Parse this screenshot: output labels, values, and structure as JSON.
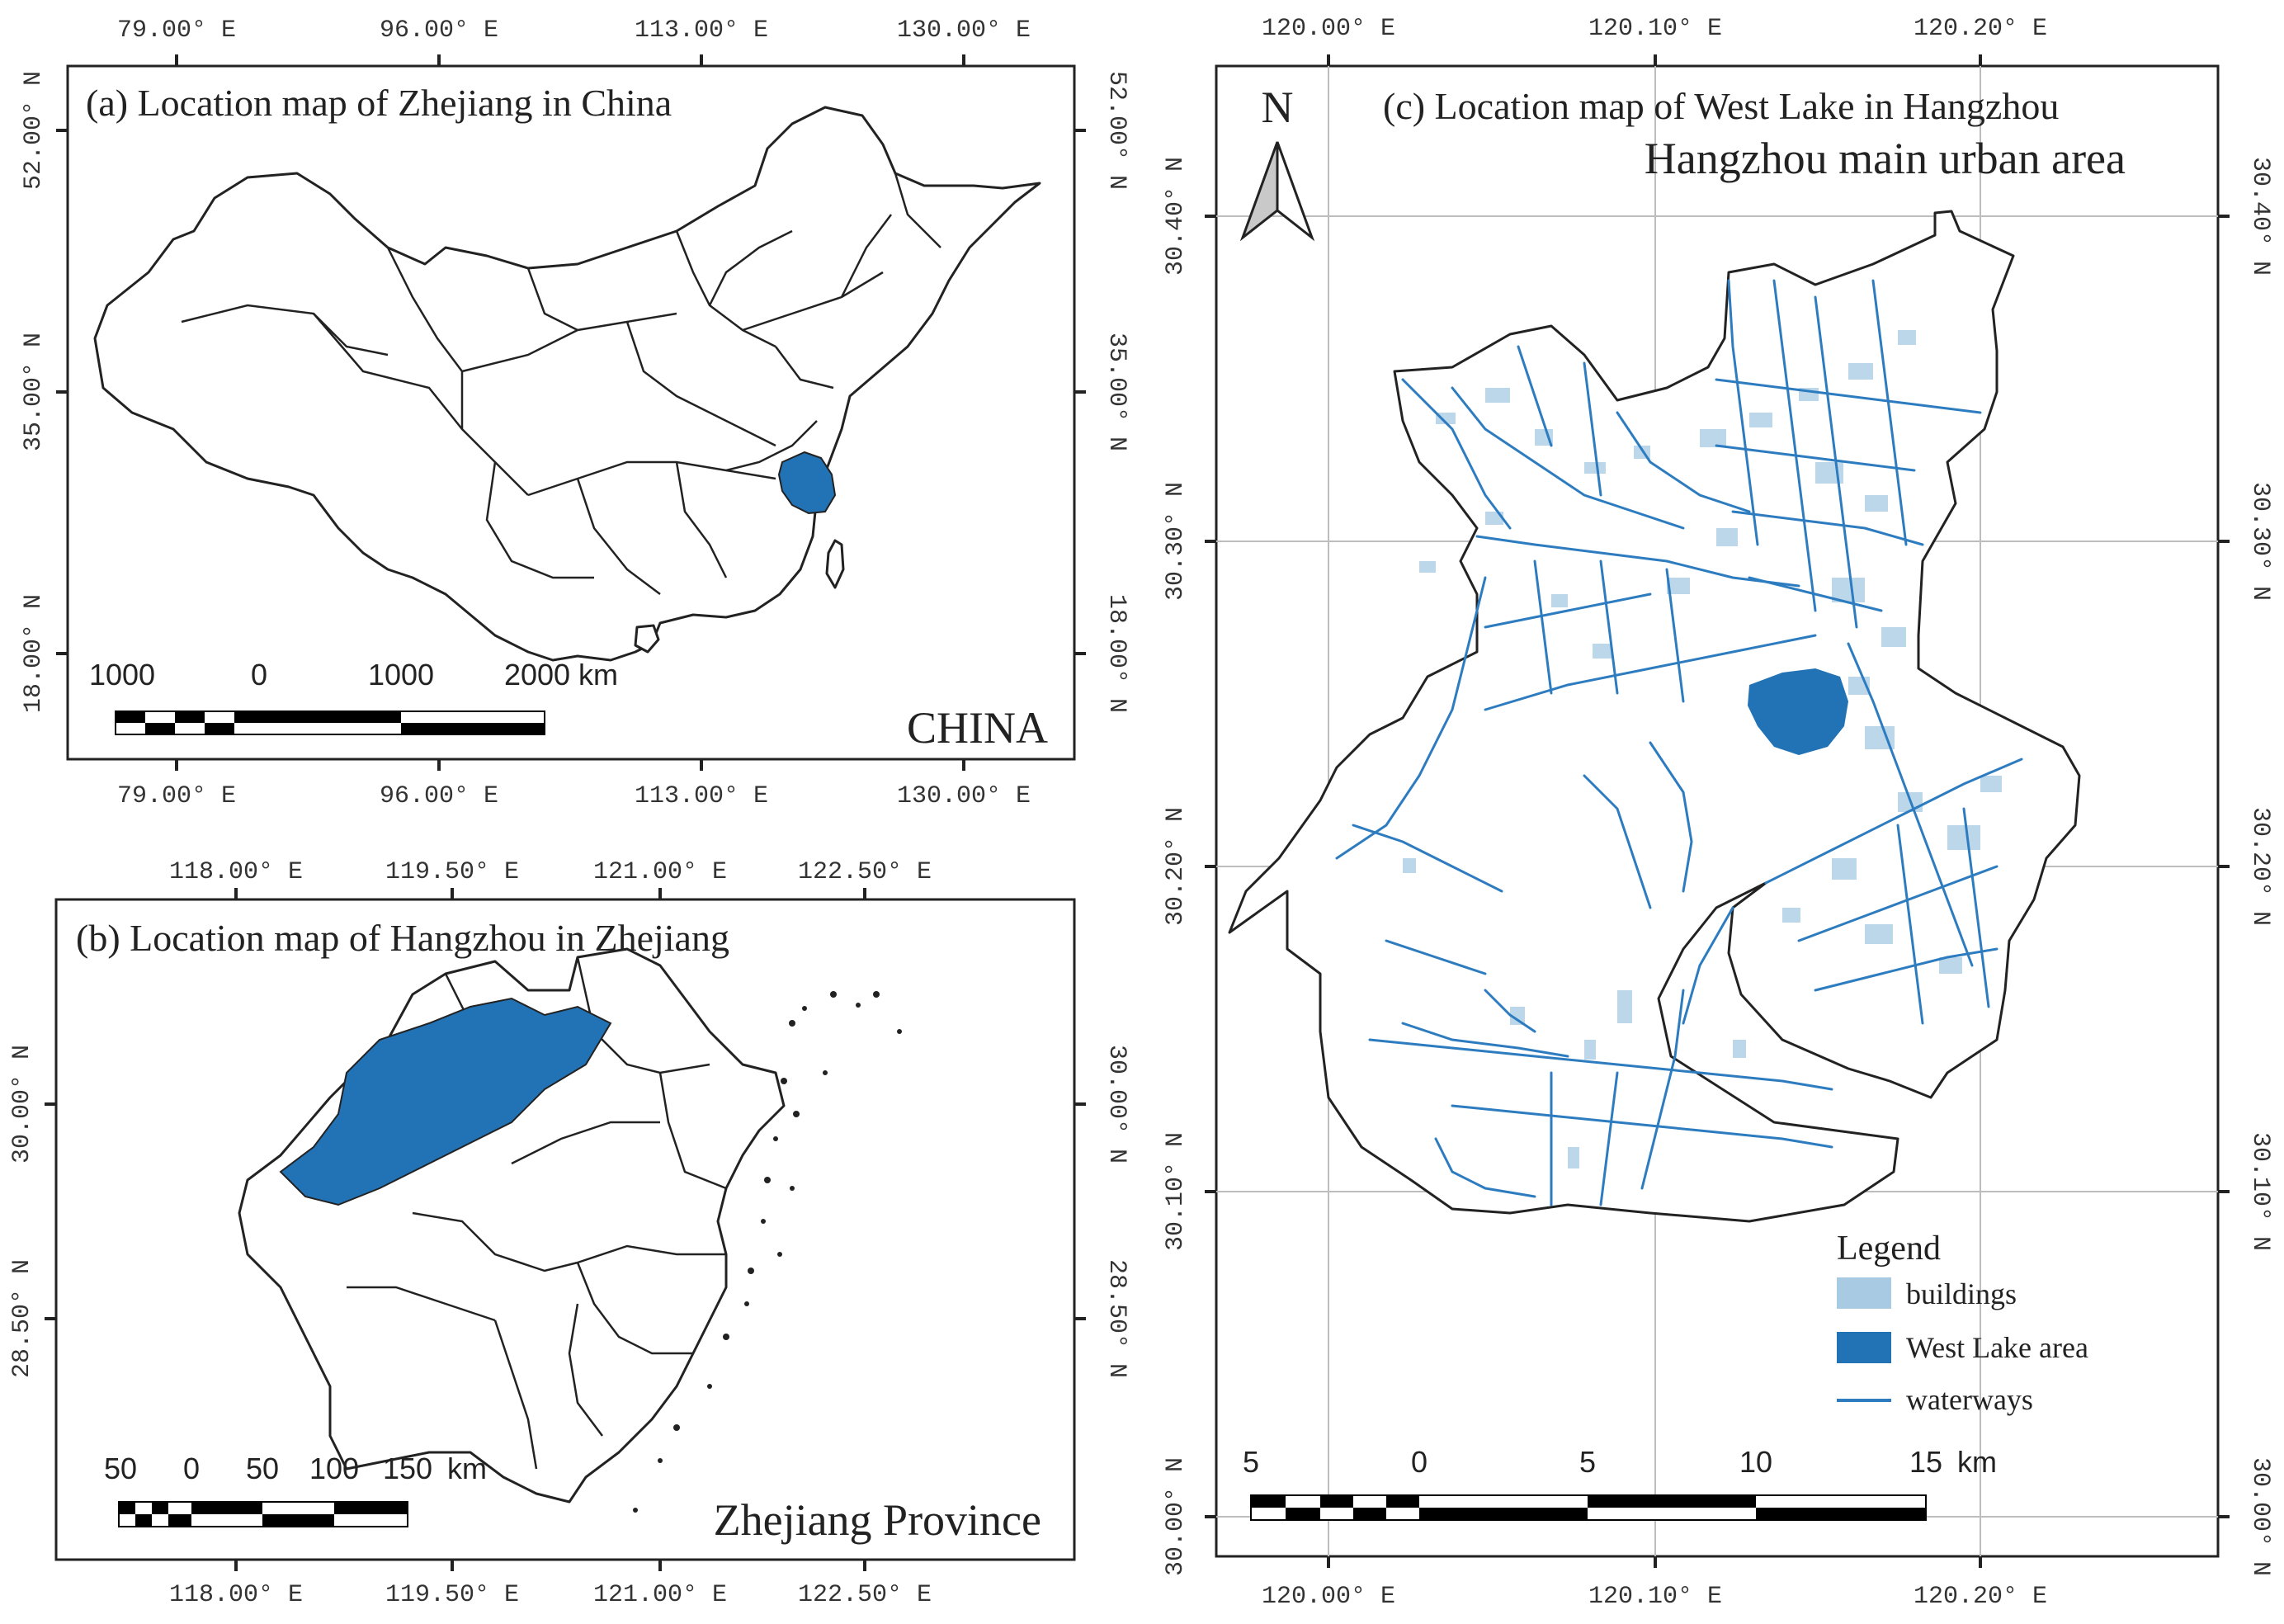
{
  "colors": {
    "highlight": "#2272b6",
    "buildings": "#a8cbe3",
    "waterways": "#2d7cc0",
    "grid": "#bdbdbd"
  },
  "panel_a": {
    "title": "(a) Location map of Zhejiang in China",
    "x_ticks": [
      "79.00° E",
      "96.00° E",
      "113.00° E",
      "130.00° E"
    ],
    "y_ticks": [
      "52.00° N",
      "35.00° N",
      "18.00° N"
    ],
    "scale_labels": [
      "1000",
      "0",
      "1000",
      "2000 km"
    ],
    "region_label": "CHINA",
    "highlight": "Zhejiang"
  },
  "panel_b": {
    "title": "(b) Location map of Hangzhou in Zhejiang",
    "x_ticks": [
      "118.00° E",
      "119.50° E",
      "121.00° E",
      "122.50° E"
    ],
    "y_ticks": [
      "30.00° N",
      "28.50° N"
    ],
    "scale_labels": [
      "50",
      "0",
      "50",
      "100",
      "150",
      "km"
    ],
    "region_label": "Zhejiang Province",
    "highlight": "Hangzhou"
  },
  "panel_c": {
    "title": "(c) Location map of West Lake in Hangzhou",
    "subtitle": "Hangzhou main urban area",
    "north_arrow": "N",
    "x_ticks": [
      "120.00° E",
      "120.10° E",
      "120.20° E"
    ],
    "y_ticks": [
      "30.40° N",
      "30.30° N",
      "30.20° N",
      "30.10° N",
      "30.00° N"
    ],
    "scale_labels": [
      "5",
      "0",
      "5",
      "10",
      "15",
      "km"
    ],
    "legend": {
      "title": "Legend",
      "items": [
        {
          "label": "buildings",
          "icon": "buildings-swatch"
        },
        {
          "label": "West Lake area",
          "icon": "west-lake-swatch"
        },
        {
          "label": "waterways",
          "icon": "waterway-line"
        }
      ]
    }
  }
}
